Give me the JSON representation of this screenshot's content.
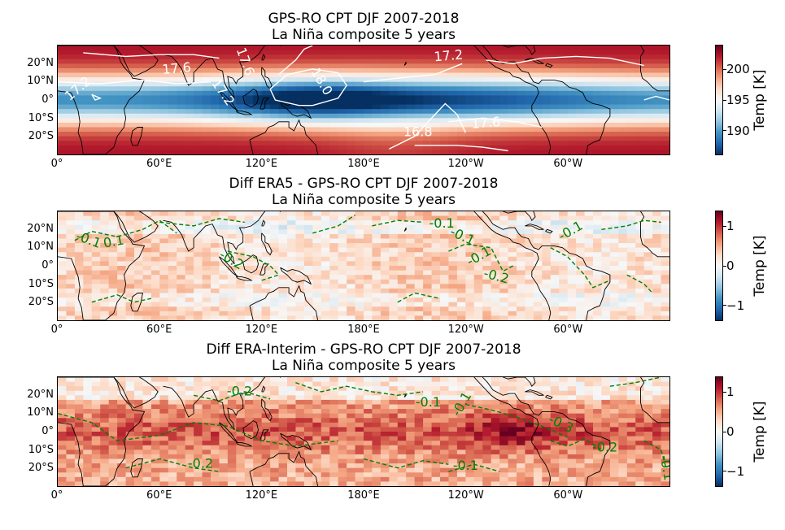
{
  "chart_data": [
    {
      "type": "heatmap",
      "title": "GPS-RO CPT DJF 2007-2018",
      "subtitle": "La Niña composite 5 years",
      "colorbar_label": "Temp [K]",
      "colorbar_ticks": [
        "200",
        "195",
        "190"
      ],
      "colorbar_tick_values": [
        200,
        195,
        190
      ],
      "clim": [
        186,
        204
      ],
      "colormap": "RdBu_r",
      "contour_color": "#ffffff",
      "contour_style": "solid",
      "contour_labels": [
        "17.6",
        "17.6",
        "17.2",
        "17.2",
        "18.0",
        "17.2",
        "17.6",
        "16.8"
      ],
      "xticks": [
        "0°",
        "60°E",
        "120°E",
        "180°E",
        "120°W",
        "60°W"
      ],
      "yticks": [
        "20°N",
        "10°N",
        "0°",
        "10°S",
        "20°S"
      ]
    },
    {
      "type": "heatmap",
      "title": "Diff ERA5 - GPS-RO CPT DJF 2007-2018",
      "subtitle": "La Niña composite 5 years",
      "colorbar_label": "Temp [K]",
      "colorbar_ticks": [
        "1",
        "0",
        "−1"
      ],
      "colorbar_tick_values": [
        1,
        0,
        -1
      ],
      "clim": [
        -1.4,
        1.4
      ],
      "colormap": "RdBu_r",
      "contour_color": "#008000",
      "contour_style": "dashed",
      "contour_labels": [
        "-0.1",
        "-0.1",
        "0.1",
        "-0.2",
        "-0.1",
        "-0.1",
        "-0.2",
        "-0.1"
      ],
      "xticks": [
        "0°",
        "60°E",
        "120°E",
        "180°E",
        "120°W",
        "60°W"
      ],
      "yticks": [
        "20°N",
        "10°N",
        "0°",
        "10°S",
        "20°S"
      ]
    },
    {
      "type": "heatmap",
      "title": "Diff ERA-Interim - GPS-RO CPT DJF 2007-2018",
      "subtitle": "La Niña composite 5 years",
      "colorbar_label": "Temp [K]",
      "colorbar_ticks": [
        "1",
        "0",
        "−1"
      ],
      "colorbar_tick_values": [
        1,
        0,
        -1
      ],
      "clim": [
        -1.4,
        1.4
      ],
      "colormap": "RdBu_r",
      "contour_color": "#008000",
      "contour_style": "dashed",
      "contour_labels": [
        "-0.2",
        "-0.1",
        "-0.1",
        "-0.3",
        "-0.2",
        "-0.2",
        "-0.1",
        "-0.1"
      ],
      "xticks": [
        "0°",
        "60°E",
        "120°E",
        "180°E",
        "120°W",
        "60°W"
      ],
      "yticks": [
        "20°N",
        "10°N",
        "0°",
        "10°S",
        "20°S"
      ]
    }
  ]
}
